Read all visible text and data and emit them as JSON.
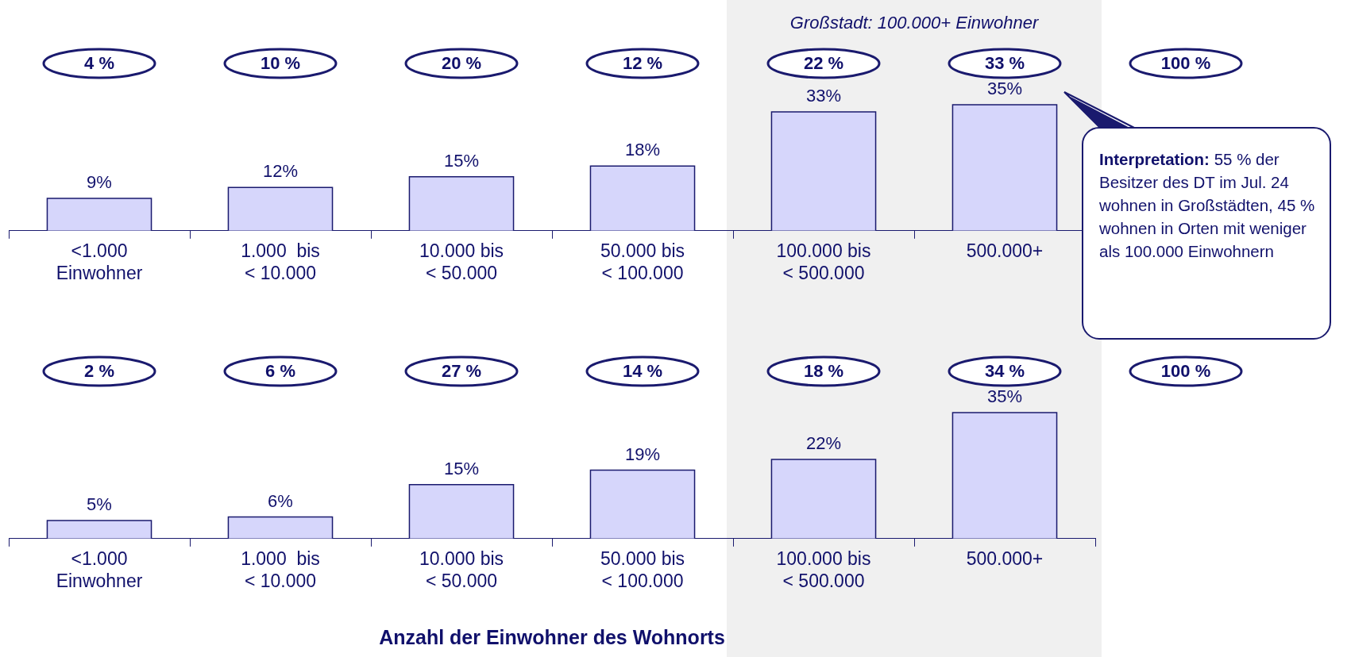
{
  "chart_data": [
    {
      "type": "bar",
      "categories": [
        "<1.000\nEinwohner",
        "1.000  bis\n< 10.000",
        "10.000 bis\n< 50.000",
        "50.000 bis\n< 100.000",
        "100.000 bis\n< 500.000",
        "500.000+"
      ],
      "values": [
        9,
        12,
        15,
        18,
        33,
        35
      ],
      "value_labels": [
        "9%",
        "12%",
        "15%",
        "18%",
        "33%",
        "35%"
      ],
      "color": "#d6d6fb",
      "bands": [
        {
          "axis": "x",
          "from": "100.000 bis\n< 500.000",
          "to": "500.000+",
          "label": "Großstadt: 100.000+ Einwohner",
          "color": "#f0f0f0"
        }
      ],
      "annotations": [
        "4 %",
        "10 %",
        "20 %",
        "12 %",
        "22 %",
        "33 %",
        "100 %",
        "Interpretation: 55 % der Besitzer des DT im Jul. 24 wohnen in Großstädten, 45 % wohnen in Orten mit weniger als 100.000 Einwohnern"
      ]
    },
    {
      "type": "bar",
      "categories": [
        "<1.000\nEinwohner",
        "1.000  bis\n< 10.000",
        "10.000 bis\n< 50.000",
        "50.000 bis\n< 100.000",
        "100.000 bis\n< 500.000",
        "500.000+"
      ],
      "values": [
        5,
        6,
        15,
        19,
        22,
        35
      ],
      "value_labels": [
        "5%",
        "6%",
        "15%",
        "19%",
        "22%",
        "35%"
      ],
      "color": "#d6d6fb",
      "bands": [
        {
          "axis": "x",
          "from": "100.000 bis\n< 500.000",
          "to": "500.000+",
          "color": "#f0f0f0"
        }
      ],
      "xlabel": "Anzahl der Einwohner des Wohnorts",
      "annotations": [
        "2 %",
        "6 %",
        "27 %",
        "14 %",
        "18 %",
        "34 %",
        "100 %"
      ]
    }
  ]
}
